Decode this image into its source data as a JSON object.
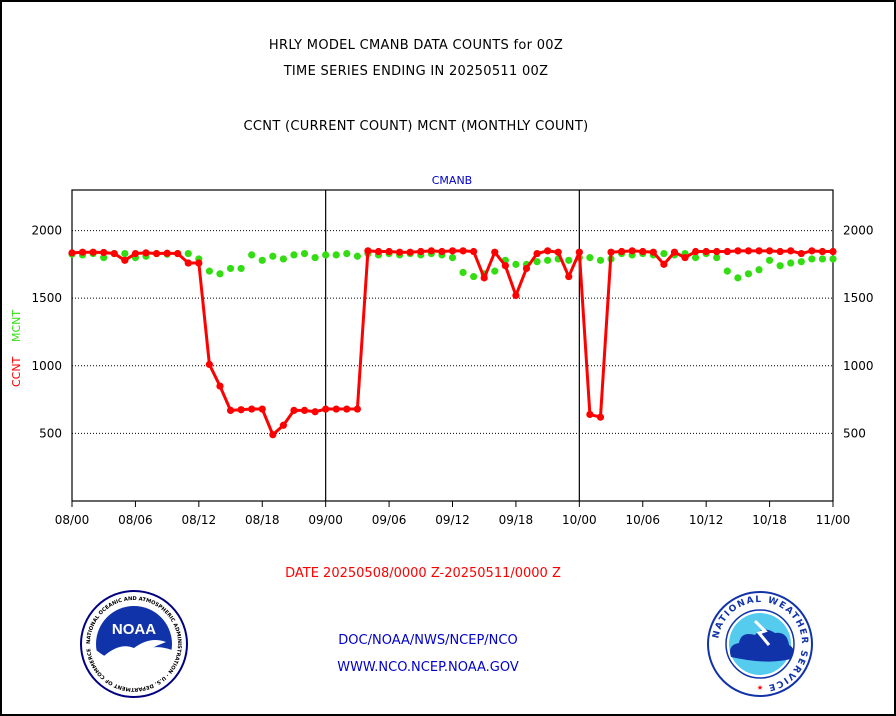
{
  "header": {
    "title_line1": "HRLY MODEL CMANB DATA COUNTS for 00Z",
    "title_line2": "TIME SERIES ENDING IN 20250511 00Z",
    "title_line3": "CCNT (CURRENT COUNT) MCNT (MONTHLY COUNT)"
  },
  "footer": {
    "date_range": "DATE 20250508/0000 Z-20250511/0000 Z",
    "link1": "DOC/NOAA/NWS/NCEP/NCO",
    "link2": "WWW.NCO.NCEP.NOAA.GOV"
  },
  "logos": {
    "noaa_text": "NOAA",
    "noaa_ring": "NATIONAL OCEANIC AND ATMOSPHERIC ADMINISTRATION · U.S. DEPARTMENT OF COMMERCE",
    "nws_ring": "NATIONAL WEATHER SERVICE"
  },
  "colors": {
    "ccnt": "#ff0000",
    "mcnt": "#33dd11",
    "subtitle": "#0000cc"
  },
  "chart_data": {
    "type": "line",
    "subtitle": "CMANB",
    "ylabel_ccnt": "CCNT",
    "ylabel_mcnt": "MCNT",
    "ylim": [
      0,
      2300
    ],
    "y_ticks": [
      500,
      1000,
      1500,
      2000
    ],
    "xlim": [
      0,
      72
    ],
    "x_ticks": [
      {
        "x": 0,
        "label": "08/00"
      },
      {
        "x": 6,
        "label": "08/06"
      },
      {
        "x": 12,
        "label": "08/12"
      },
      {
        "x": 18,
        "label": "08/18"
      },
      {
        "x": 24,
        "label": "09/00"
      },
      {
        "x": 30,
        "label": "09/06"
      },
      {
        "x": 36,
        "label": "09/12"
      },
      {
        "x": 42,
        "label": "09/18"
      },
      {
        "x": 48,
        "label": "10/00"
      },
      {
        "x": 54,
        "label": "10/06"
      },
      {
        "x": 60,
        "label": "10/12"
      },
      {
        "x": 66,
        "label": "10/18"
      },
      {
        "x": 72,
        "label": "11/00"
      }
    ],
    "day_dividers": [
      24,
      48
    ],
    "grid": true,
    "series": [
      {
        "name": "CCNT",
        "x": [
          0,
          1,
          2,
          3,
          4,
          5,
          6,
          7,
          8,
          9,
          10,
          11,
          12,
          13,
          14,
          15,
          16,
          17,
          18,
          19,
          20,
          21,
          22,
          23,
          24,
          25,
          26,
          27,
          28,
          29,
          30,
          31,
          32,
          33,
          34,
          35,
          36,
          37,
          38,
          39,
          40,
          41,
          42,
          43,
          44,
          45,
          46,
          47,
          48,
          49,
          50,
          51,
          52,
          53,
          54,
          55,
          56,
          57,
          58,
          59,
          60,
          61,
          62,
          63,
          64,
          65,
          66,
          67,
          68,
          69,
          70,
          71,
          72
        ],
        "values": [
          1835,
          1840,
          1840,
          1838,
          1830,
          1780,
          1830,
          1835,
          1830,
          1832,
          1830,
          1760,
          1760,
          1010,
          850,
          670,
          675,
          680,
          680,
          490,
          560,
          670,
          670,
          660,
          680,
          680,
          680,
          680,
          1850,
          1845,
          1845,
          1840,
          1840,
          1845,
          1850,
          1845,
          1850,
          1850,
          1845,
          1650,
          1840,
          1740,
          1520,
          1720,
          1830,
          1850,
          1840,
          1660,
          1840,
          640,
          620,
          1840,
          1845,
          1850,
          1845,
          1840,
          1750,
          1840,
          1800,
          1845,
          1845,
          1845,
          1845,
          1850,
          1850,
          1850,
          1850,
          1845,
          1850,
          1830,
          1850,
          1845,
          1845
        ]
      },
      {
        "name": "MCNT",
        "x": [
          0,
          1,
          2,
          3,
          4,
          5,
          6,
          7,
          8,
          9,
          10,
          11,
          12,
          13,
          14,
          15,
          16,
          17,
          18,
          19,
          20,
          21,
          22,
          23,
          24,
          25,
          26,
          27,
          28,
          29,
          30,
          31,
          32,
          33,
          34,
          35,
          36,
          37,
          38,
          39,
          40,
          41,
          42,
          43,
          44,
          45,
          46,
          47,
          48,
          49,
          50,
          51,
          52,
          53,
          54,
          55,
          56,
          57,
          58,
          59,
          60,
          61,
          62,
          63,
          64,
          65,
          66,
          67,
          68,
          69,
          70,
          71,
          72
        ],
        "values": [
          1825,
          1820,
          1830,
          1800,
          1830,
          1830,
          1800,
          1810,
          1830,
          1825,
          1830,
          1830,
          1790,
          1700,
          1680,
          1720,
          1720,
          1820,
          1780,
          1810,
          1790,
          1820,
          1830,
          1800,
          1820,
          1820,
          1830,
          1810,
          1830,
          1820,
          1830,
          1820,
          1830,
          1820,
          1830,
          1820,
          1800,
          1690,
          1660,
          1680,
          1700,
          1780,
          1750,
          1750,
          1770,
          1780,
          1790,
          1780,
          1800,
          1800,
          1780,
          1790,
          1830,
          1820,
          1830,
          1820,
          1830,
          1820,
          1830,
          1800,
          1830,
          1800,
          1700,
          1650,
          1680,
          1710,
          1780,
          1740,
          1760,
          1770,
          1790,
          1790,
          1790
        ]
      }
    ]
  }
}
